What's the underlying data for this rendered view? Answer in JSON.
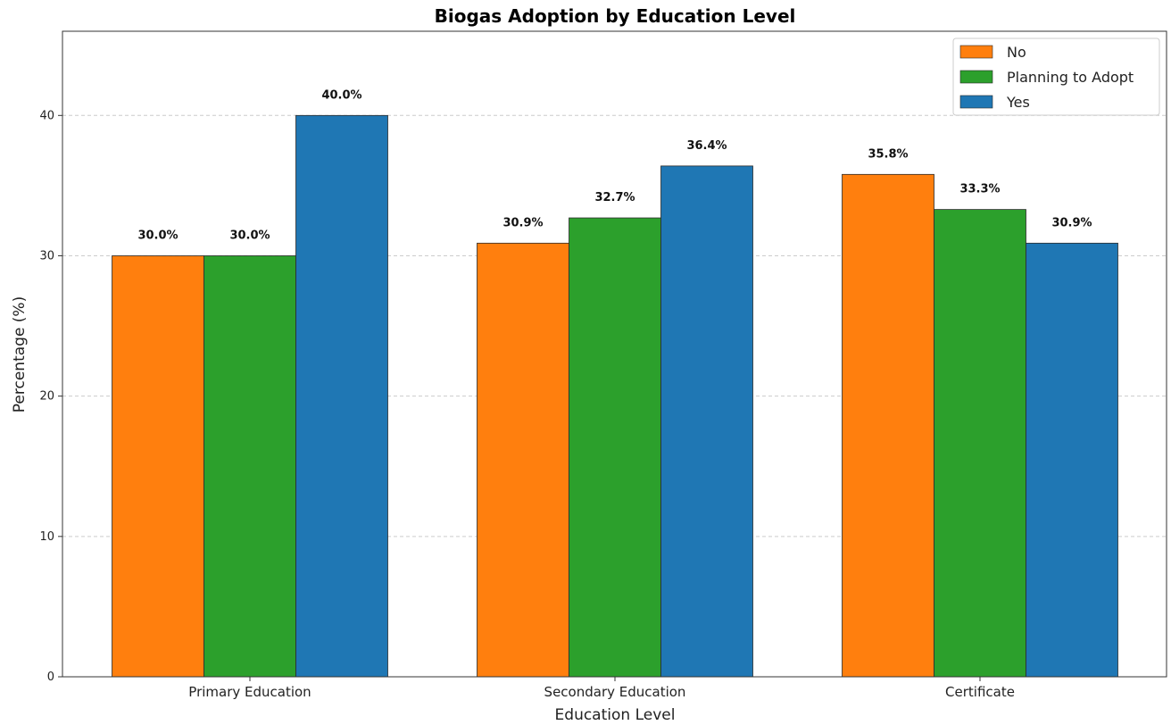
{
  "chart_data": {
    "type": "bar",
    "title": "Biogas Adoption by Education Level",
    "xlabel": "Education Level",
    "ylabel": "Percentage (%)",
    "categories": [
      "Primary Education",
      "Secondary Education",
      "Certificate"
    ],
    "series": [
      {
        "name": "No",
        "color": "#ff7f0e",
        "values": [
          30.0,
          30.9,
          35.8
        ],
        "labels": [
          "30.0%",
          "30.9%",
          "35.8%"
        ]
      },
      {
        "name": "Planning to Adopt",
        "color": "#2ca02c",
        "values": [
          30.0,
          32.7,
          33.3
        ],
        "labels": [
          "30.0%",
          "32.7%",
          "33.3%"
        ]
      },
      {
        "name": "Yes",
        "color": "#1f77b4",
        "values": [
          40.0,
          36.4,
          30.9
        ],
        "labels": [
          "40.0%",
          "36.4%",
          "30.9%"
        ]
      }
    ],
    "yticks": [
      0,
      10,
      20,
      30,
      40
    ],
    "ylim": [
      0,
      46
    ],
    "grid": "horizontal dashed",
    "legend_position": "top-right"
  }
}
